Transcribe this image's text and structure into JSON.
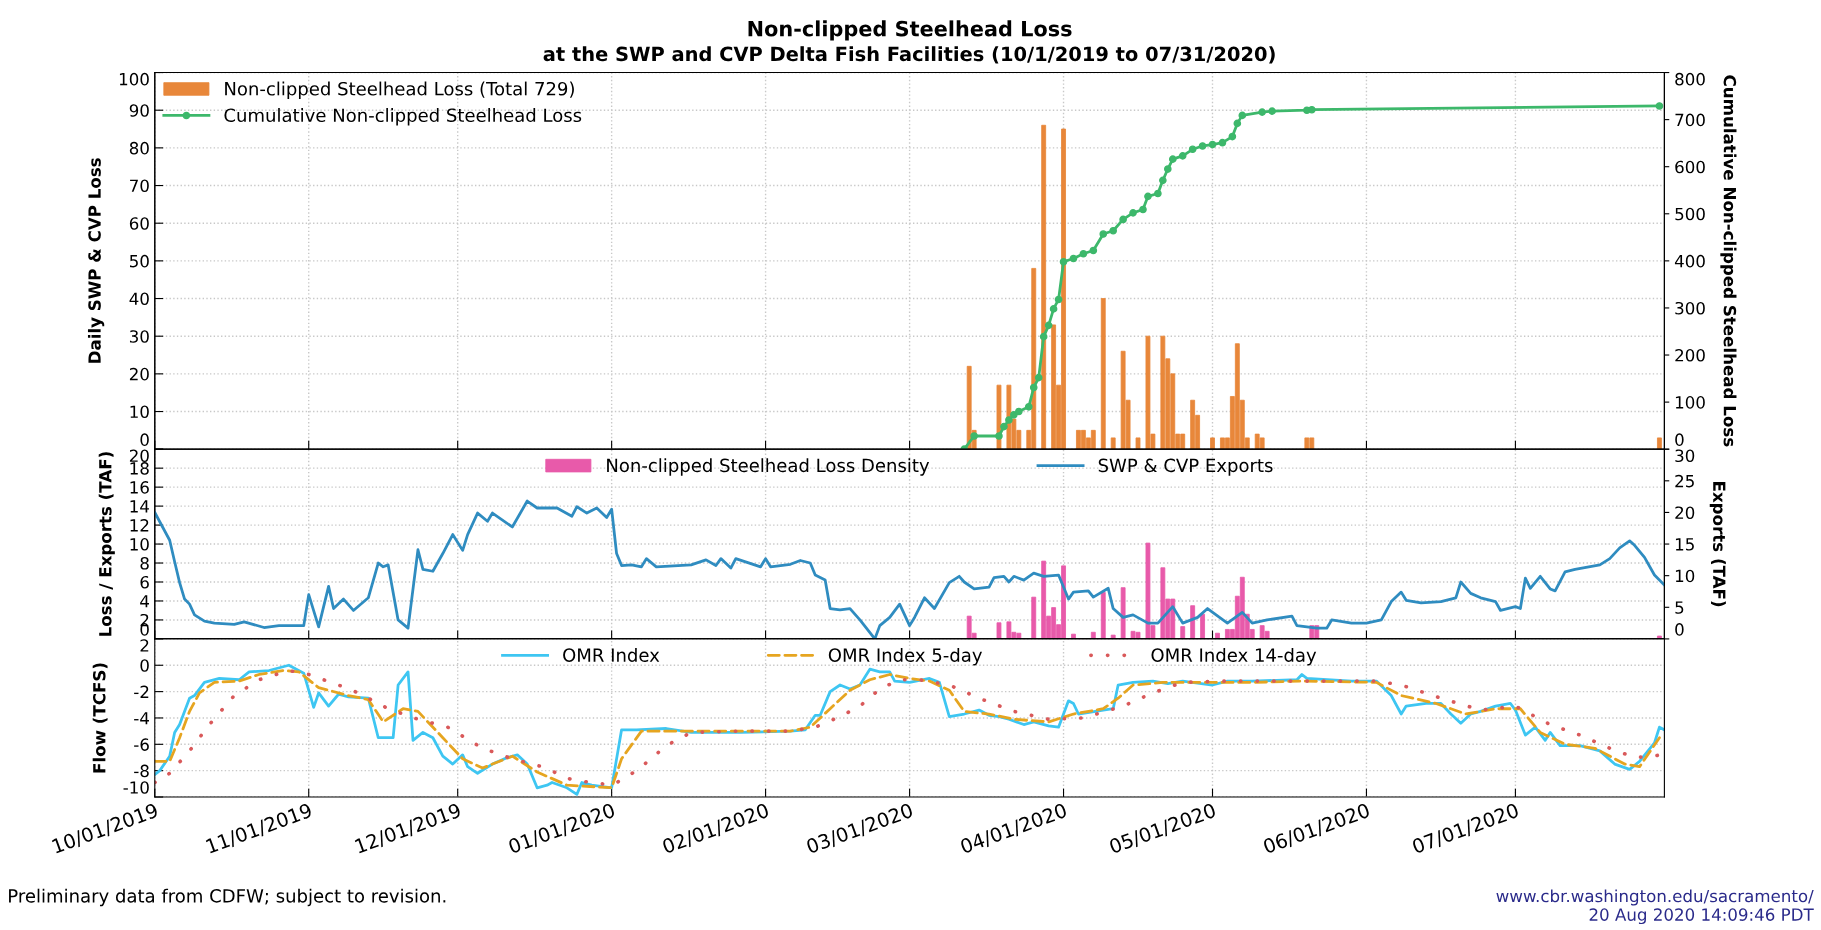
{
  "chart_data": [
    {
      "type": "bar",
      "title": "Non-clipped Steelhead Loss",
      "subtitle": "at the SWP and CVP Delta Fish Facilities (10/1/2019 to 07/31/2020)",
      "ylabel": "Daily SWP & CVP Loss",
      "y2label": "Cumulative Non-clipped Steelhead Loss",
      "xlim": [
        "2019-10-01",
        "2020-07-31"
      ],
      "xticks": [
        {
          "value": "2019-10-01",
          "label": null
        },
        {
          "value": "2019-11-01",
          "label": null
        },
        {
          "value": "2019-12-01",
          "label": null
        },
        {
          "value": "2020-01-01",
          "label": null
        },
        {
          "value": "2020-02-01",
          "label": null
        },
        {
          "value": "2020-03-01",
          "label": null
        },
        {
          "value": "2020-04-01",
          "label": null
        },
        {
          "value": "2020-05-01",
          "label": null
        },
        {
          "value": "2020-06-01",
          "label": null
        },
        {
          "value": "2020-07-01",
          "label": null
        }
      ],
      "ylim": [
        0,
        100
      ],
      "yticks": [
        0,
        10,
        20,
        30,
        40,
        50,
        60,
        70,
        80,
        90,
        100
      ],
      "y2lim": [
        0,
        800
      ],
      "y2ticks": [
        0,
        100,
        200,
        300,
        400,
        500,
        600,
        700,
        800
      ],
      "tick_labels": "y",
      "grid": true,
      "legend": "top left",
      "series": [
        {
          "name": "Non-clipped Steelhead Loss (Total 729)",
          "type": "bar",
          "color": "#e8873a",
          "x": [
            "2020-03-13",
            "2020-03-14",
            "2020-03-19",
            "2020-03-21",
            "2020-03-22",
            "2020-03-23",
            "2020-03-25",
            "2020-03-26",
            "2020-03-28",
            "2020-03-30",
            "2020-03-31",
            "2020-04-01",
            "2020-04-04",
            "2020-04-05",
            "2020-04-06",
            "2020-04-07",
            "2020-04-09",
            "2020-04-11",
            "2020-04-13",
            "2020-04-14",
            "2020-04-16",
            "2020-04-18",
            "2020-04-19",
            "2020-04-21",
            "2020-04-22",
            "2020-04-23",
            "2020-04-24",
            "2020-04-25",
            "2020-04-27",
            "2020-04-28",
            "2020-05-01",
            "2020-05-03",
            "2020-05-04",
            "2020-05-05",
            "2020-05-06",
            "2020-05-07",
            "2020-05-08",
            "2020-05-10",
            "2020-05-11",
            "2020-05-20",
            "2020-05-21",
            "2020-07-30"
          ],
          "values": [
            22,
            5,
            17,
            17,
            8,
            5,
            5,
            48,
            86,
            33,
            17,
            85,
            5,
            5,
            3,
            5,
            40,
            3,
            26,
            13,
            3,
            30,
            4,
            30,
            24,
            20,
            4,
            4,
            13,
            9,
            3,
            3,
            3,
            14,
            28,
            13,
            3,
            4,
            3,
            3,
            3,
            3
          ]
        },
        {
          "name": "Cumulative Non-clipped Steelhead Loss",
          "type": "line",
          "axis": "y2",
          "marker": "circle",
          "color": "#3db86b",
          "x": [
            "2020-03-12",
            "2020-03-14",
            "2020-03-19",
            "2020-03-20",
            "2020-03-21",
            "2020-03-22",
            "2020-03-23",
            "2020-03-25",
            "2020-03-26",
            "2020-03-27",
            "2020-03-28",
            "2020-03-29",
            "2020-03-30",
            "2020-03-31",
            "2020-04-01",
            "2020-04-03",
            "2020-04-05",
            "2020-04-07",
            "2020-04-09",
            "2020-04-11",
            "2020-04-13",
            "2020-04-15",
            "2020-04-17",
            "2020-04-18",
            "2020-04-20",
            "2020-04-21",
            "2020-04-22",
            "2020-04-23",
            "2020-04-25",
            "2020-04-27",
            "2020-04-29",
            "2020-05-01",
            "2020-05-03",
            "2020-05-05",
            "2020-05-06",
            "2020-05-07",
            "2020-05-11",
            "2020-05-13",
            "2020-05-20",
            "2020-05-21",
            "2020-07-30"
          ],
          "values": [
            0,
            28,
            28,
            48,
            62,
            73,
            80,
            90,
            131,
            152,
            239,
            263,
            298,
            318,
            398,
            405,
            415,
            422,
            457,
            464,
            488,
            502,
            509,
            537,
            543,
            571,
            595,
            616,
            623,
            637,
            644,
            647,
            651,
            664,
            692,
            709,
            716,
            718,
            720,
            721,
            729
          ]
        }
      ]
    },
    {
      "type": "bar",
      "ylabel": "Loss / Exports (TAF)",
      "y2label": "Exports (TAF)",
      "xlim": [
        "2019-10-01",
        "2020-07-31"
      ],
      "xticks": [
        {
          "value": "2019-10-01",
          "label": null
        },
        {
          "value": "2019-11-01",
          "label": null
        },
        {
          "value": "2019-12-01",
          "label": null
        },
        {
          "value": "2020-01-01",
          "label": null
        },
        {
          "value": "2020-02-01",
          "label": null
        },
        {
          "value": "2020-03-01",
          "label": null
        },
        {
          "value": "2020-04-01",
          "label": null
        },
        {
          "value": "2020-05-01",
          "label": null
        },
        {
          "value": "2020-06-01",
          "label": null
        },
        {
          "value": "2020-07-01",
          "label": null
        }
      ],
      "ylim": [
        0,
        20
      ],
      "yticks": [
        0,
        2,
        4,
        6,
        8,
        10,
        12,
        14,
        16,
        18,
        20
      ],
      "y2lim": [
        0,
        30
      ],
      "y2ticks": [
        0,
        5,
        10,
        15,
        20,
        25,
        30
      ],
      "tick_labels": "y",
      "grid": true,
      "legend": "top",
      "series": [
        {
          "name": "Non-clipped Steelhead Loss Density",
          "type": "bar",
          "color": "#e85aaa",
          "x": [
            "2020-03-13",
            "2020-03-14",
            "2020-03-19",
            "2020-03-21",
            "2020-03-22",
            "2020-03-23",
            "2020-03-26",
            "2020-03-28",
            "2020-03-29",
            "2020-03-30",
            "2020-03-31",
            "2020-04-01",
            "2020-04-03",
            "2020-04-07",
            "2020-04-09",
            "2020-04-11",
            "2020-04-13",
            "2020-04-15",
            "2020-04-16",
            "2020-04-18",
            "2020-04-19",
            "2020-04-21",
            "2020-04-22",
            "2020-04-23",
            "2020-04-25",
            "2020-04-27",
            "2020-04-29",
            "2020-05-02",
            "2020-05-04",
            "2020-05-05",
            "2020-05-06",
            "2020-05-07",
            "2020-05-08",
            "2020-05-09",
            "2020-05-11",
            "2020-05-12",
            "2020-05-21",
            "2020-05-22",
            "2020-07-30"
          ],
          "values": [
            2.4,
            0.6,
            1.7,
            1.8,
            0.7,
            0.6,
            4.4,
            8.2,
            2.4,
            3.3,
            1.5,
            7.7,
            0.5,
            0.7,
            4.9,
            0.4,
            5.4,
            0.8,
            0.7,
            10.1,
            1.4,
            7.5,
            4.2,
            4.2,
            1.3,
            3.5,
            2.6,
            0.6,
            1.0,
            1.0,
            4.5,
            6.5,
            2.6,
            1.0,
            1.4,
            0.8,
            1.4,
            1.4,
            0.3
          ]
        },
        {
          "name": "SWP & CVP Exports",
          "type": "line",
          "axis": "y2",
          "color": "#2f8cc0",
          "x": [
            "2019-10-01",
            "2019-10-04",
            "2019-10-05",
            "2019-10-06",
            "2019-10-07",
            "2019-10-08",
            "2019-10-09",
            "2019-10-11",
            "2019-10-13",
            "2019-10-17",
            "2019-10-19",
            "2019-10-23",
            "2019-10-26",
            "2019-10-31",
            "2019-11-01",
            "2019-11-03",
            "2019-11-05",
            "2019-11-06",
            "2019-11-08",
            "2019-11-10",
            "2019-11-13",
            "2019-11-15",
            "2019-11-16",
            "2019-11-17",
            "2019-11-19",
            "2019-11-21",
            "2019-11-23",
            "2019-11-24",
            "2019-11-26",
            "2019-11-28",
            "2019-11-30",
            "2019-12-02",
            "2019-12-03",
            "2019-12-05",
            "2019-12-07",
            "2019-12-08",
            "2019-12-12",
            "2019-12-15",
            "2019-12-17",
            "2019-12-21",
            "2019-12-24",
            "2019-12-25",
            "2019-12-27",
            "2019-12-29",
            "2019-12-31",
            "2020-01-01",
            "2020-01-02",
            "2020-01-03",
            "2020-01-05",
            "2020-01-07",
            "2020-01-08",
            "2020-01-10",
            "2020-01-17",
            "2020-01-20",
            "2020-01-22",
            "2020-01-23",
            "2020-01-25",
            "2020-01-26",
            "2020-01-31",
            "2020-02-01",
            "2020-02-02",
            "2020-02-06",
            "2020-02-08",
            "2020-02-10",
            "2020-02-11",
            "2020-02-13",
            "2020-02-14",
            "2020-02-16",
            "2020-02-18",
            "2020-02-20",
            "2020-02-23",
            "2020-02-24",
            "2020-02-26",
            "2020-02-28",
            "2020-03-01",
            "2020-03-02",
            "2020-03-04",
            "2020-03-06",
            "2020-03-09",
            "2020-03-11",
            "2020-03-12",
            "2020-03-14",
            "2020-03-17",
            "2020-03-18",
            "2020-03-20",
            "2020-03-21",
            "2020-03-22",
            "2020-03-24",
            "2020-03-26",
            "2020-03-28",
            "2020-03-31",
            "2020-04-02",
            "2020-04-03",
            "2020-04-06",
            "2020-04-07",
            "2020-04-10",
            "2020-04-11",
            "2020-04-13",
            "2020-04-15",
            "2020-04-18",
            "2020-04-20",
            "2020-04-23",
            "2020-04-25",
            "2020-04-28",
            "2020-04-30",
            "2020-05-04",
            "2020-05-07",
            "2020-05-09",
            "2020-05-12",
            "2020-05-17",
            "2020-05-18",
            "2020-05-22",
            "2020-05-24",
            "2020-05-25",
            "2020-05-29",
            "2020-06-01",
            "2020-06-04",
            "2020-06-06",
            "2020-06-08",
            "2020-06-09",
            "2020-06-12",
            "2020-06-16",
            "2020-06-19",
            "2020-06-20",
            "2020-06-22",
            "2020-06-24",
            "2020-06-27",
            "2020-06-28",
            "2020-07-01",
            "2020-07-02",
            "2020-07-03",
            "2020-07-04",
            "2020-07-06",
            "2020-07-08",
            "2020-07-09",
            "2020-07-11",
            "2020-07-13",
            "2020-07-18",
            "2020-07-20",
            "2020-07-22",
            "2020-07-24",
            "2020-07-25",
            "2020-07-27",
            "2020-07-29",
            "2020-07-31"
          ],
          "values": [
            20,
            15.6,
            12.2,
            8.9,
            6.3,
            5.5,
            3.8,
            2.8,
            2.5,
            2.3,
            2.7,
            1.8,
            2.1,
            2.1,
            7.0,
            1.9,
            8.3,
            4.8,
            6.3,
            4.5,
            6.5,
            12.0,
            11.4,
            11.7,
            3.0,
            1.7,
            14.1,
            11.0,
            10.7,
            13.5,
            16.5,
            14.0,
            16.5,
            19.9,
            18.6,
            19.9,
            17.7,
            21.8,
            20.7,
            20.7,
            19.4,
            20.9,
            19.9,
            20.7,
            19.2,
            20.5,
            13.5,
            11.6,
            11.7,
            11.4,
            12.7,
            11.4,
            11.7,
            12.5,
            11.6,
            12.7,
            11.2,
            12.7,
            11.4,
            12.7,
            11.4,
            11.8,
            12.4,
            12.0,
            10.1,
            9.3,
            4.8,
            4.6,
            4.8,
            3.0,
            0,
            2.1,
            3.4,
            5.5,
            2.1,
            3.4,
            6.5,
            4.8,
            8.9,
            9.9,
            9.0,
            7.9,
            8.2,
            9.7,
            9.9,
            9.0,
            9.9,
            9.3,
            10.4,
            9.9,
            10.1,
            6.3,
            7.4,
            7.6,
            6.6,
            8.0,
            4.8,
            3.4,
            3.8,
            2.5,
            2.5,
            5.1,
            2.5,
            3.4,
            4.8,
            2.5,
            4.2,
            2.5,
            3.0,
            3.6,
            2.1,
            1.7,
            1.7,
            3.0,
            2.5,
            2.5,
            3.0,
            5.9,
            7.4,
            6.1,
            5.7,
            5.9,
            6.5,
            9.0,
            7.2,
            6.5,
            5.9,
            4.5,
            5.1,
            4.8,
            9.6,
            8.0,
            9.9,
            7.9,
            7.6,
            10.6,
            11.0,
            11.7,
            12.7,
            14.4,
            15.5,
            14.8,
            12.9,
            10.1,
            8.5
          ]
        }
      ]
    },
    {
      "type": "line",
      "ylabel": "Flow (TCFS)",
      "xlim": [
        "2019-10-01",
        "2020-07-31"
      ],
      "xticks": [
        {
          "value": "2019-10-01",
          "label": "10/01/2019"
        },
        {
          "value": "2019-11-01",
          "label": "11/01/2019"
        },
        {
          "value": "2019-12-01",
          "label": "12/01/2019"
        },
        {
          "value": "2020-01-01",
          "label": "01/01/2020"
        },
        {
          "value": "2020-02-01",
          "label": "02/01/2020"
        },
        {
          "value": "2020-03-01",
          "label": "03/01/2020"
        },
        {
          "value": "2020-04-01",
          "label": "04/01/2020"
        },
        {
          "value": "2020-05-01",
          "label": "05/01/2020"
        },
        {
          "value": "2020-06-01",
          "label": "06/01/2020"
        },
        {
          "value": "2020-07-01",
          "label": "07/01/2020"
        }
      ],
      "ylim": [
        -10,
        2
      ],
      "yticks": [
        -10,
        -8,
        -6,
        -4,
        -2,
        0,
        2
      ],
      "grid": true,
      "legend": "top",
      "annotations": [
        "Preliminary data from CDFW; subject to revision.",
        "www.cbr.washington.edu/sacramento/",
        "20 Aug 2020 14:09:46 PDT"
      ],
      "series": [
        {
          "name": "OMR Index",
          "color": "#3ec6f2",
          "line_style": "solid",
          "x": [
            "2019-10-01",
            "2019-10-02",
            "2019-10-04",
            "2019-10-05",
            "2019-10-06",
            "2019-10-08",
            "2019-10-09",
            "2019-10-11",
            "2019-10-14",
            "2019-10-18",
            "2019-10-20",
            "2019-10-24",
            "2019-10-28",
            "2019-10-31",
            "2019-11-02",
            "2019-11-03",
            "2019-11-05",
            "2019-11-07",
            "2019-11-09",
            "2019-11-13",
            "2019-11-15",
            "2019-11-18",
            "2019-11-19",
            "2019-11-21",
            "2019-11-22",
            "2019-11-24",
            "2019-11-26",
            "2019-11-28",
            "2019-11-30",
            "2019-12-02",
            "2019-12-03",
            "2019-12-05",
            "2019-12-08",
            "2019-12-11",
            "2019-12-13",
            "2019-12-15",
            "2019-12-17",
            "2019-12-19",
            "2019-12-20",
            "2019-12-23",
            "2019-12-25",
            "2019-12-26",
            "2019-12-28",
            "2020-01-01",
            "2020-01-03",
            "2020-01-06",
            "2020-01-12",
            "2020-01-17",
            "2020-01-27",
            "2020-02-06",
            "2020-02-09",
            "2020-02-11",
            "2020-02-12",
            "2020-02-14",
            "2020-02-16",
            "2020-02-18",
            "2020-02-20",
            "2020-02-22",
            "2020-02-24",
            "2020-02-26",
            "2020-02-27",
            "2020-03-01",
            "2020-03-05",
            "2020-03-07",
            "2020-03-09",
            "2020-03-12",
            "2020-03-15",
            "2020-03-17",
            "2020-03-19",
            "2020-03-21",
            "2020-03-24",
            "2020-03-26",
            "2020-03-29",
            "2020-03-31",
            "2020-04-02",
            "2020-04-03",
            "2020-04-04",
            "2020-04-09",
            "2020-04-11",
            "2020-04-12",
            "2020-04-15",
            "2020-04-19",
            "2020-04-22",
            "2020-04-25",
            "2020-05-01",
            "2020-05-04",
            "2020-05-09",
            "2020-05-18",
            "2020-05-19",
            "2020-05-20",
            "2020-05-29",
            "2020-06-03",
            "2020-06-06",
            "2020-06-08",
            "2020-06-09",
            "2020-06-13",
            "2020-06-16",
            "2020-06-18",
            "2020-06-20",
            "2020-06-22",
            "2020-06-24",
            "2020-06-27",
            "2020-06-30",
            "2020-07-01",
            "2020-07-03",
            "2020-07-05",
            "2020-07-07",
            "2020-07-08",
            "2020-07-10",
            "2020-07-14",
            "2020-07-18",
            "2020-07-21",
            "2020-07-24",
            "2020-07-26",
            "2020-07-29",
            "2020-07-30",
            "2020-07-31"
          ],
          "values": [
            -8.3,
            -8.0,
            -6.9,
            -5.1,
            -4.5,
            -2.5,
            -2.3,
            -1.3,
            -1.0,
            -1.1,
            -0.5,
            -0.4,
            0,
            -0.6,
            -3.2,
            -2.1,
            -3.1,
            -2.2,
            -2.4,
            -2.5,
            -5.5,
            -5.5,
            -1.5,
            -0.5,
            -5.7,
            -5.1,
            -5.5,
            -6.9,
            -7.5,
            -6.8,
            -7.7,
            -8.2,
            -7.5,
            -7.0,
            -6.8,
            -7.5,
            -9.3,
            -9.1,
            -8.9,
            -9.3,
            -9.8,
            -8.9,
            -9.1,
            -9.3,
            -4.9,
            -4.9,
            -4.8,
            -5.1,
            -5.1,
            -5.0,
            -4.9,
            -3.8,
            -3.8,
            -2.0,
            -1.5,
            -1.8,
            -1.5,
            -0.3,
            -0.5,
            -0.5,
            -1.2,
            -1.3,
            -1.0,
            -1.3,
            -3.9,
            -3.7,
            -3.4,
            -3.8,
            -3.9,
            -4.1,
            -4.5,
            -4.3,
            -4.6,
            -4.7,
            -2.7,
            -2.9,
            -3.7,
            -3.4,
            -3.3,
            -1.5,
            -1.3,
            -1.2,
            -1.4,
            -1.2,
            -1.5,
            -1.2,
            -1.2,
            -1.1,
            -0.7,
            -1.0,
            -1.2,
            -1.2,
            -2.3,
            -3.7,
            -3.1,
            -2.9,
            -2.9,
            -3.7,
            -4.4,
            -3.7,
            -3.5,
            -3.1,
            -2.9,
            -3.4,
            -5.3,
            -4.7,
            -5.7,
            -5.1,
            -6.1,
            -6.1,
            -6.5,
            -7.5,
            -7.9,
            -7.3,
            -5.9,
            -4.7,
            -4.9
          ]
        },
        {
          "name": "OMR Index 5-day",
          "color": "#e6a520",
          "line_style": "dashed",
          "x": [
            "2019-10-01",
            "2019-10-04",
            "2019-10-06",
            "2019-10-08",
            "2019-10-10",
            "2019-10-13",
            "2019-10-18",
            "2019-10-22",
            "2019-10-27",
            "2019-10-30",
            "2019-11-03",
            "2019-11-09",
            "2019-11-13",
            "2019-11-16",
            "2019-11-20",
            "2019-11-23",
            "2019-11-28",
            "2019-12-02",
            "2019-12-06",
            "2019-12-12",
            "2019-12-17",
            "2019-12-23",
            "2020-01-01",
            "2020-01-03",
            "2020-01-07",
            "2020-01-17",
            "2020-02-06",
            "2020-02-10",
            "2020-02-14",
            "2020-02-18",
            "2020-02-22",
            "2020-02-26",
            "2020-03-01",
            "2020-03-05",
            "2020-03-09",
            "2020-03-12",
            "2020-03-17",
            "2020-03-22",
            "2020-03-29",
            "2020-04-03",
            "2020-04-09",
            "2020-04-12",
            "2020-04-15",
            "2020-04-21",
            "2020-04-29",
            "2020-05-09",
            "2020-05-19",
            "2020-06-03",
            "2020-06-08",
            "2020-06-15",
            "2020-06-21",
            "2020-06-27",
            "2020-07-02",
            "2020-07-06",
            "2020-07-11",
            "2020-07-17",
            "2020-07-23",
            "2020-07-26",
            "2020-07-30"
          ],
          "values": [
            -7.3,
            -7.3,
            -5.5,
            -3.5,
            -2.1,
            -1.3,
            -1.2,
            -0.7,
            -0.4,
            -0.5,
            -1.7,
            -2.3,
            -2.6,
            -4.3,
            -3.3,
            -3.5,
            -5.5,
            -7.1,
            -7.8,
            -6.9,
            -8.1,
            -9.1,
            -9.3,
            -7.1,
            -5.0,
            -5.0,
            -5.0,
            -4.7,
            -3.3,
            -1.9,
            -1.1,
            -0.7,
            -1.0,
            -1.2,
            -1.9,
            -3.5,
            -3.7,
            -4.1,
            -4.3,
            -3.7,
            -3.3,
            -2.5,
            -1.5,
            -1.3,
            -1.3,
            -1.3,
            -1.2,
            -1.3,
            -2.3,
            -2.9,
            -3.7,
            -3.3,
            -3.3,
            -5.1,
            -6.0,
            -6.3,
            -7.5,
            -7.7,
            -5.5
          ]
        },
        {
          "name": "OMR Index 14-day",
          "color": "#d9595a",
          "line_style": "dotted",
          "x": [
            "2019-10-01",
            "2019-10-04",
            "2019-10-08",
            "2019-10-12",
            "2019-10-17",
            "2019-10-22",
            "2019-10-28",
            "2019-11-01",
            "2019-11-07",
            "2019-11-11",
            "2019-11-17",
            "2019-11-23",
            "2019-11-29",
            "2019-12-06",
            "2019-12-12",
            "2019-12-18",
            "2019-12-24",
            "2020-01-01",
            "2020-01-04",
            "2020-01-07",
            "2020-01-12",
            "2020-01-17",
            "2020-01-27",
            "2020-02-06",
            "2020-02-11",
            "2020-02-16",
            "2020-02-20",
            "2020-02-24",
            "2020-02-28",
            "2020-03-03",
            "2020-03-09",
            "2020-03-15",
            "2020-03-22",
            "2020-03-29",
            "2020-04-05",
            "2020-04-13",
            "2020-04-19",
            "2020-04-25",
            "2020-05-04",
            "2020-05-19",
            "2020-06-03",
            "2020-06-08",
            "2020-06-16",
            "2020-06-24",
            "2020-07-01",
            "2020-07-08",
            "2020-07-14",
            "2020-07-20",
            "2020-07-25",
            "2020-07-29",
            "2020-07-31"
          ],
          "values": [
            -8.9,
            -8.2,
            -6.5,
            -4.5,
            -2.3,
            -1.1,
            -0.4,
            -0.7,
            -1.5,
            -2.1,
            -3.3,
            -4.1,
            -4.7,
            -6.3,
            -7.1,
            -7.7,
            -8.7,
            -9.1,
            -8.5,
            -7.7,
            -6.1,
            -5.1,
            -5.0,
            -5.0,
            -4.7,
            -3.9,
            -3.1,
            -1.8,
            -1.1,
            -1.1,
            -1.5,
            -2.5,
            -3.5,
            -4.1,
            -4.0,
            -3.1,
            -2.1,
            -1.3,
            -1.2,
            -1.2,
            -1.2,
            -1.5,
            -2.5,
            -3.4,
            -3.1,
            -4.5,
            -5.3,
            -6.3,
            -7.0,
            -6.9,
            -6.7
          ]
        }
      ]
    }
  ]
}
